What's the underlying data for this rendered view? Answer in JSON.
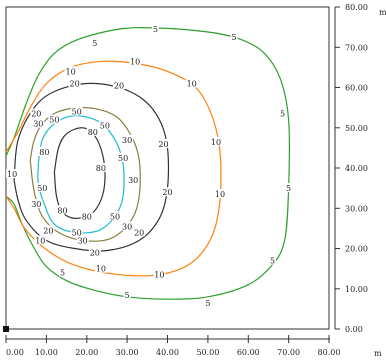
{
  "chart_data": {
    "type": "contour",
    "x_unit": "m",
    "y_unit": "m",
    "xlim": [
      0,
      80
    ],
    "ylim": [
      0,
      80
    ],
    "x_ticks": [
      {
        "value": 0,
        "label": "0.00"
      },
      {
        "value": 10,
        "label": "10.00"
      },
      {
        "value": 20,
        "label": "20.00"
      },
      {
        "value": 30,
        "label": "30.00"
      },
      {
        "value": 40,
        "label": "40.00"
      },
      {
        "value": 50,
        "label": "50.00"
      },
      {
        "value": 60,
        "label": "60.00"
      },
      {
        "value": 70,
        "label": "70.00"
      },
      {
        "value": 80,
        "label": "80.00"
      }
    ],
    "y_ticks": [
      {
        "value": 0,
        "label": "0.00"
      },
      {
        "value": 10,
        "label": "10.00"
      },
      {
        "value": 20,
        "label": "20.00"
      },
      {
        "value": 30,
        "label": "30.00"
      },
      {
        "value": 40,
        "label": "40.00"
      },
      {
        "value": 50,
        "label": "50.00"
      },
      {
        "value": 60,
        "label": "60.00"
      },
      {
        "value": 70,
        "label": "70.00"
      },
      {
        "value": 80,
        "label": "80.00"
      }
    ],
    "grid": false,
    "contours": [
      {
        "level": 5,
        "color": "#2ca02c",
        "points": [
          [
            0,
            43
          ],
          [
            2,
            47.5
          ],
          [
            5,
            56
          ],
          [
            8,
            63
          ],
          [
            12,
            68.5
          ],
          [
            18,
            72
          ],
          [
            28,
            74.5
          ],
          [
            37,
            74.8
          ],
          [
            50,
            73.8
          ],
          [
            58,
            72
          ],
          [
            64,
            68.5
          ],
          [
            68,
            62
          ],
          [
            70,
            52
          ],
          [
            70,
            35
          ],
          [
            69,
            22
          ],
          [
            66,
            16
          ],
          [
            60,
            11
          ],
          [
            50,
            8
          ],
          [
            40,
            7.4
          ],
          [
            30,
            8
          ],
          [
            22,
            9.6
          ],
          [
            15,
            12
          ],
          [
            10,
            15.5
          ],
          [
            7,
            20
          ],
          [
            4,
            26
          ],
          [
            2,
            31
          ],
          [
            0,
            33
          ]
        ],
        "labels": [
          [
            22,
            71
          ],
          [
            37,
            74.5
          ],
          [
            56.5,
            72.5
          ],
          [
            68.5,
            53.5
          ],
          [
            70,
            35
          ],
          [
            66,
            17
          ],
          [
            50,
            6.5
          ],
          [
            30,
            8.5
          ],
          [
            14,
            14
          ]
        ]
      },
      {
        "level": 10,
        "color": "#ff7f0e",
        "points": [
          [
            0,
            44
          ],
          [
            3,
            49
          ],
          [
            6,
            55
          ],
          [
            10,
            61
          ],
          [
            16,
            65
          ],
          [
            24,
            66.5
          ],
          [
            32,
            66
          ],
          [
            40,
            64
          ],
          [
            47,
            60
          ],
          [
            51,
            53
          ],
          [
            53,
            44
          ],
          [
            53,
            32
          ],
          [
            51,
            23
          ],
          [
            46,
            16.5
          ],
          [
            38,
            13.5
          ],
          [
            28,
            13.5
          ],
          [
            18,
            15.5
          ],
          [
            11,
            19
          ],
          [
            5,
            24.5
          ],
          [
            2,
            30
          ],
          [
            0,
            33
          ]
        ],
        "labels": [
          [
            16,
            64
          ],
          [
            32,
            66.5
          ],
          [
            46,
            61
          ],
          [
            52,
            46.5
          ],
          [
            53,
            33.5
          ],
          [
            38,
            13.5
          ],
          [
            23.5,
            15
          ],
          [
            8.5,
            22
          ],
          [
            1.5,
            38.5
          ]
        ]
      },
      {
        "level": 20,
        "color": "#333333",
        "points": [
          [
            2,
            37
          ],
          [
            3,
            47
          ],
          [
            7,
            55
          ],
          [
            12,
            59
          ],
          [
            20,
            61
          ],
          [
            28,
            60
          ],
          [
            34,
            57
          ],
          [
            38,
            52
          ],
          [
            40,
            45
          ],
          [
            40,
            35
          ],
          [
            38,
            27.5
          ],
          [
            33,
            22
          ],
          [
            25,
            19.5
          ],
          [
            17,
            20
          ],
          [
            10,
            22
          ],
          [
            5,
            27
          ],
          [
            3,
            32
          ],
          [
            2,
            37
          ]
        ],
        "labels": [
          [
            7.5,
            53.5
          ],
          [
            17,
            61
          ],
          [
            28,
            60.5
          ],
          [
            39,
            46
          ],
          [
            40,
            34
          ],
          [
            33,
            24
          ],
          [
            22,
            19
          ],
          [
            10.5,
            24.5
          ]
        ]
      },
      {
        "level": 30,
        "color": "#8c7f3f",
        "points": [
          [
            6,
            42
          ],
          [
            7,
            47
          ],
          [
            9,
            51
          ],
          [
            13,
            54
          ],
          [
            20,
            55
          ],
          [
            27,
            53
          ],
          [
            31,
            48
          ],
          [
            33,
            42
          ],
          [
            33,
            33
          ],
          [
            31,
            27
          ],
          [
            26,
            22.5
          ],
          [
            19,
            22
          ],
          [
            13,
            24
          ],
          [
            9,
            28
          ],
          [
            7,
            34
          ],
          [
            6,
            42
          ]
        ],
        "labels": [
          [
            8,
            51
          ],
          [
            30,
            47
          ],
          [
            31.5,
            37
          ],
          [
            30,
            25.5
          ],
          [
            19,
            22
          ],
          [
            7.5,
            31
          ]
        ]
      },
      {
        "level": 50,
        "color": "#17becf",
        "points": [
          [
            8,
            41
          ],
          [
            9,
            47
          ],
          [
            12,
            51
          ],
          [
            17,
            53
          ],
          [
            23,
            51.5
          ],
          [
            27,
            47
          ],
          [
            29,
            41
          ],
          [
            29,
            33
          ],
          [
            27,
            28
          ],
          [
            23,
            24.5
          ],
          [
            17,
            24
          ],
          [
            12,
            26
          ],
          [
            9.5,
            31
          ],
          [
            8,
            36
          ],
          [
            8,
            41
          ]
        ],
        "labels": [
          [
            12,
            52
          ],
          [
            17.5,
            54
          ],
          [
            24.5,
            50.5
          ],
          [
            29,
            42.5
          ],
          [
            27,
            28
          ],
          [
            17.5,
            24
          ],
          [
            9,
            35
          ]
        ]
      },
      {
        "level": 80,
        "color": "#333333",
        "points": [
          [
            12,
            39
          ],
          [
            13,
            45
          ],
          [
            15,
            48.5
          ],
          [
            19,
            50
          ],
          [
            22,
            48
          ],
          [
            24,
            43
          ],
          [
            24.5,
            37
          ],
          [
            23.5,
            32
          ],
          [
            21,
            28.5
          ],
          [
            17,
            27.5
          ],
          [
            14,
            29
          ],
          [
            12.5,
            33
          ],
          [
            12,
            39
          ]
        ],
        "labels": [
          [
            9.5,
            44
          ],
          [
            21.5,
            49
          ],
          [
            23.5,
            40
          ],
          [
            20,
            28
          ],
          [
            14,
            29.5
          ]
        ]
      }
    ],
    "marker_origin": [
      0,
      0
    ]
  }
}
